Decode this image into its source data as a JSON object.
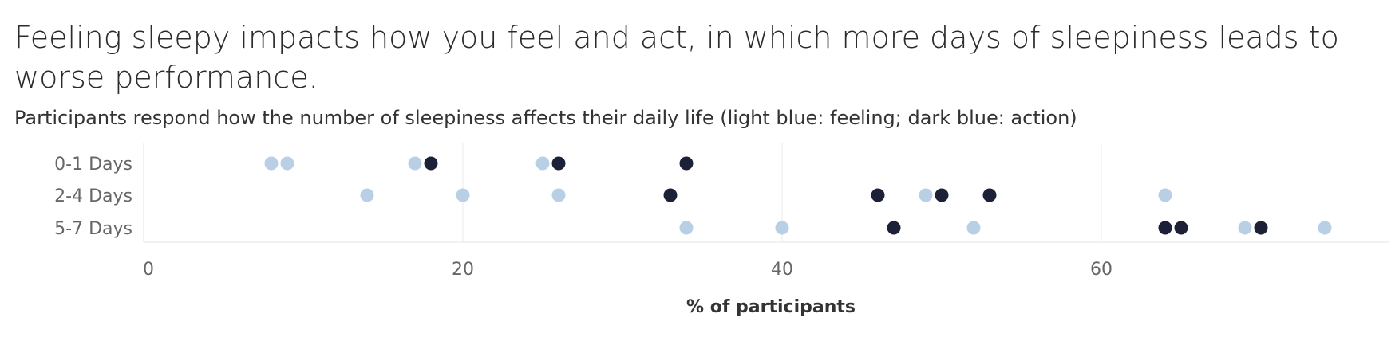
{
  "chart_data": {
    "type": "scatter",
    "title": "Feeling sleepy impacts how you feel and act, in which more days of sleepiness leads to worse performance.",
    "subtitle": "Participants respond how the number of sleepiness affects their daily life (light blue: feeling; dark blue: action)",
    "xlabel": "% of participants",
    "ylabel": "",
    "xlim": [
      0,
      78
    ],
    "xticks": [
      0,
      20,
      40,
      60
    ],
    "categories": [
      "0-1 Days",
      "2-4 Days",
      "5-7 Days"
    ],
    "grid": "vertical",
    "legend": "none",
    "series": [
      {
        "color": "#b8cfe6",
        "points": [
          {
            "category": "0-1 Days",
            "x": 8
          },
          {
            "category": "0-1 Days",
            "x": 9
          },
          {
            "category": "0-1 Days",
            "x": 17
          },
          {
            "category": "0-1 Days",
            "x": 25
          },
          {
            "category": "2-4 Days",
            "x": 14
          },
          {
            "category": "2-4 Days",
            "x": 20
          },
          {
            "category": "2-4 Days",
            "x": 26
          },
          {
            "category": "2-4 Days",
            "x": 49
          },
          {
            "category": "2-4 Days",
            "x": 64
          },
          {
            "category": "5-7 Days",
            "x": 34
          },
          {
            "category": "5-7 Days",
            "x": 40
          },
          {
            "category": "5-7 Days",
            "x": 52
          },
          {
            "category": "5-7 Days",
            "x": 69
          },
          {
            "category": "5-7 Days",
            "x": 74
          }
        ]
      },
      {
        "color": "#1c2138",
        "points": [
          {
            "category": "0-1 Days",
            "x": 18
          },
          {
            "category": "0-1 Days",
            "x": 26
          },
          {
            "category": "0-1 Days",
            "x": 34
          },
          {
            "category": "2-4 Days",
            "x": 33
          },
          {
            "category": "2-4 Days",
            "x": 46
          },
          {
            "category": "2-4 Days",
            "x": 50
          },
          {
            "category": "2-4 Days",
            "x": 53
          },
          {
            "category": "5-7 Days",
            "x": 47
          },
          {
            "category": "5-7 Days",
            "x": 64
          },
          {
            "category": "5-7 Days",
            "x": 65
          },
          {
            "category": "5-7 Days",
            "x": 70
          }
        ]
      }
    ]
  }
}
